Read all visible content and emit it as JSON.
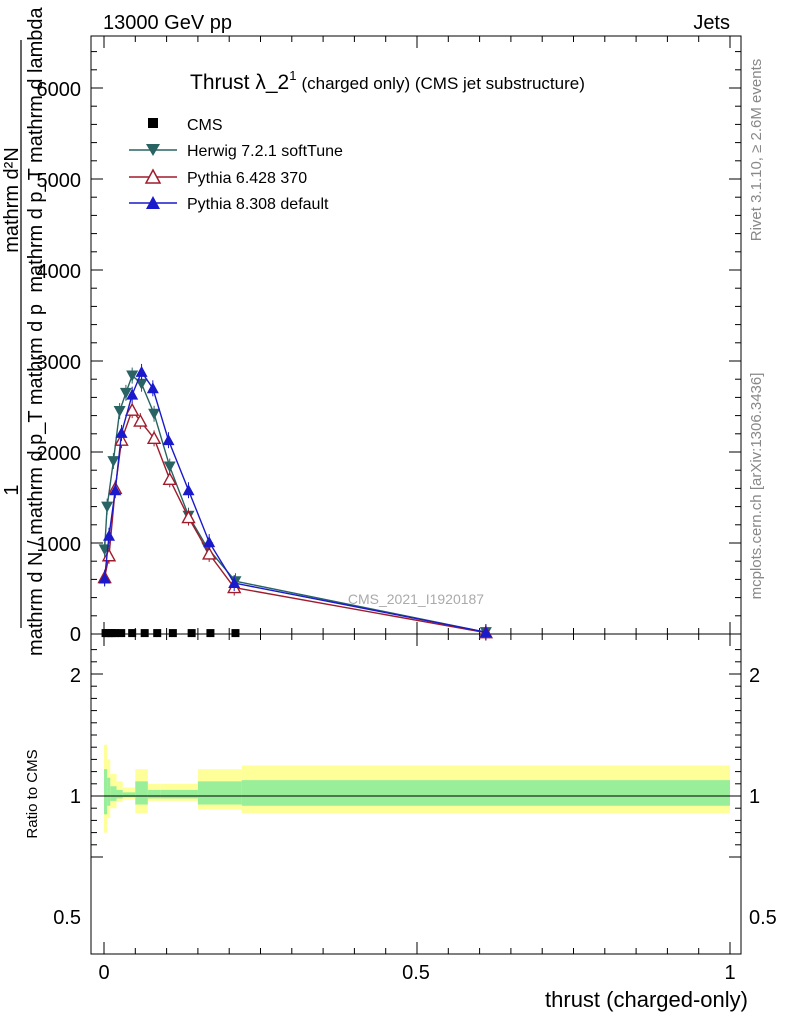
{
  "header": {
    "energy_label": "13000 GeV pp",
    "process_label": "Jets"
  },
  "side_labels": {
    "rivet": "Rivet 3.1.10, ≥ 2.6M events",
    "mcplots": "mcplots.cern.ch [arXiv:1306.3436]"
  },
  "watermark": "CMS_2021_I1920187",
  "colors": {
    "herwig": "#2a6363",
    "pythia6": "#a01c2c",
    "pythia8": "#1a1acc",
    "band_outer": "#ffff99",
    "band_inner": "#99ee99"
  },
  "chart_data": {
    "type": "line",
    "title": "Thrust λ_2",
    "title_sup": "1",
    "title_suffix": "(charged only) (CMS jet substructure)",
    "ylabel_lines": [
      "1",
      "mathrm d N / mathrm d p",
      "mathrm d p",
      "mathrm d",
      "mathrm d²N",
      "T",
      "mathrm d lambda"
    ],
    "ylabel": {
      "numerator": "mathrm d²N",
      "denominator": "mathrm d p_T mathrm d lambda",
      "prefix": "1",
      "prefix_denominator": "mathrm d N / mathrm d p_T mathrm d p"
    },
    "xlabel": "thrust (charged-only)",
    "ratio_ylabel": "Ratio to CMS",
    "xlim": [
      -0.02,
      1.02
    ],
    "ylim": [
      0,
      6500
    ],
    "ratio_ylim": [
      0.45,
      2.3
    ],
    "y_ticks": [
      "0",
      "1000",
      "2000",
      "3000",
      "4000",
      "5000",
      "6000"
    ],
    "ratio_ticks": [
      "0.5",
      "1",
      "2"
    ],
    "x_ticks": [
      "0",
      "0.5",
      "1"
    ],
    "legend": [
      "CMS",
      "Herwig 7.2.1 softTune",
      "Pythia 6.428 370",
      "Pythia 8.308 default"
    ],
    "series": [
      {
        "name": "CMS",
        "marker": "square",
        "x": [
          0.0025,
          0.0075,
          0.0125,
          0.0175,
          0.0275,
          0.045,
          0.065,
          0.085,
          0.11,
          0.14,
          0.17,
          0.21
        ],
        "y": [
          10,
          10,
          10,
          10,
          10,
          10,
          10,
          10,
          10,
          10,
          10,
          10
        ]
      },
      {
        "name": "Herwig 7.2.1 softTune",
        "marker": "triangle-down",
        "x": [
          0.001,
          0.005,
          0.015,
          0.025,
          0.035,
          0.045,
          0.06,
          0.08,
          0.105,
          0.135,
          0.165,
          0.21,
          0.61
        ],
        "y": [
          930,
          1400,
          1900,
          2450,
          2650,
          2840,
          2750,
          2420,
          1840,
          1300,
          950,
          580,
          20
        ]
      },
      {
        "name": "Pythia 6.428 370",
        "marker": "triangle-open",
        "x": [
          0.001,
          0.008,
          0.018,
          0.028,
          0.045,
          0.058,
          0.08,
          0.105,
          0.135,
          0.168,
          0.208,
          0.61
        ],
        "y": [
          620,
          860,
          1600,
          2130,
          2460,
          2340,
          2150,
          1700,
          1280,
          880,
          510,
          15
        ]
      },
      {
        "name": "Pythia 8.308 default",
        "marker": "triangle-up",
        "x": [
          0.001,
          0.008,
          0.018,
          0.028,
          0.045,
          0.06,
          0.078,
          0.103,
          0.135,
          0.168,
          0.208,
          0.61
        ],
        "y": [
          610,
          1080,
          1580,
          2210,
          2630,
          2880,
          2700,
          2130,
          1580,
          1010,
          560,
          20
        ]
      }
    ],
    "ratio_band": {
      "x_edges": [
        0,
        0.005,
        0.01,
        0.02,
        0.03,
        0.05,
        0.07,
        0.09,
        0.15,
        0.22,
        1.0
      ],
      "outer_low": [
        0.7,
        0.82,
        0.9,
        0.95,
        0.97,
        0.86,
        0.96,
        0.96,
        0.89,
        0.86,
        0.91
      ],
      "outer_high": [
        1.42,
        1.3,
        1.18,
        1.12,
        1.07,
        1.22,
        1.1,
        1.1,
        1.22,
        1.25,
        1.16
      ],
      "inner_low": [
        0.85,
        0.92,
        0.96,
        0.98,
        0.99,
        0.93,
        0.98,
        0.98,
        0.93,
        0.92,
        0.96
      ],
      "inner_high": [
        1.22,
        1.15,
        1.08,
        1.05,
        1.03,
        1.12,
        1.05,
        1.05,
        1.12,
        1.13,
        1.07
      ]
    }
  }
}
